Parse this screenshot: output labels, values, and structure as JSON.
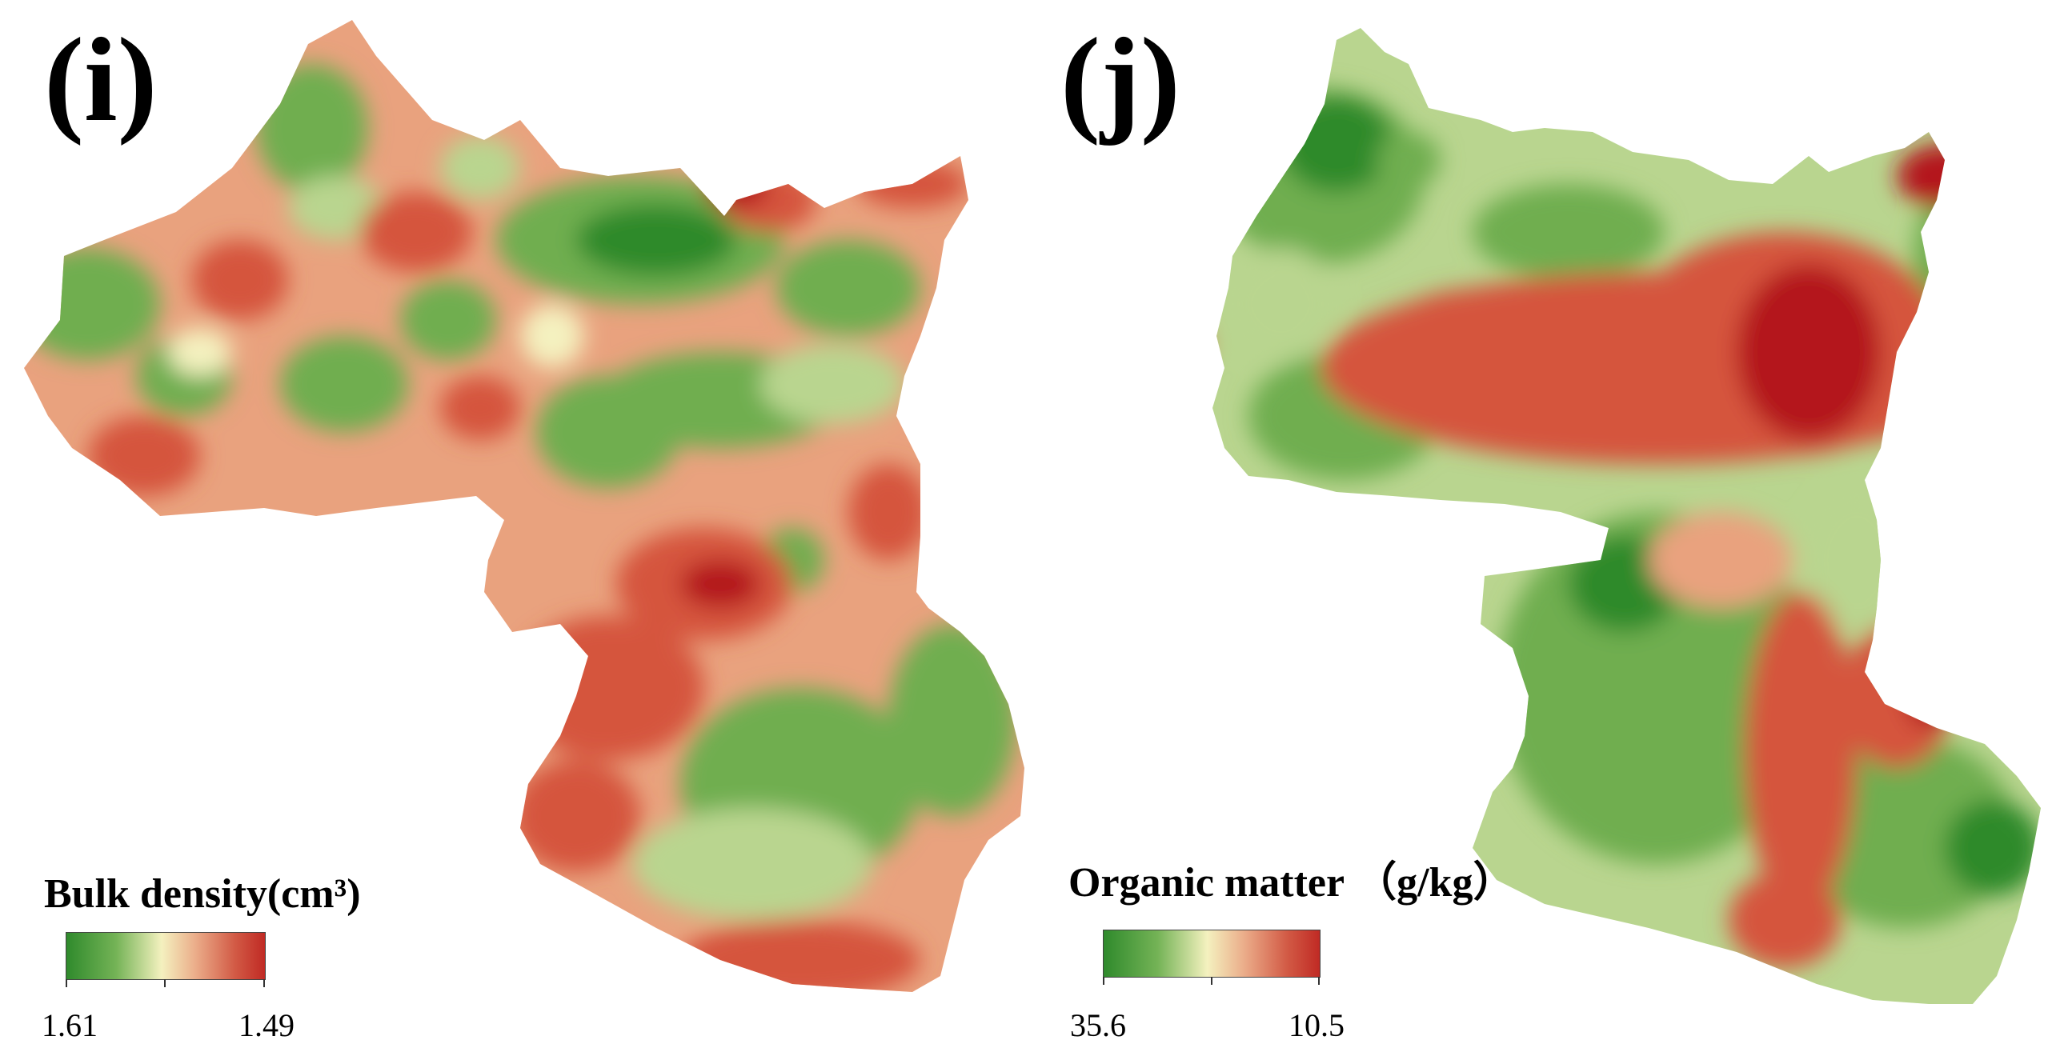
{
  "panels": [
    {
      "label": "(i)",
      "legend": {
        "title": "Bulk density(cm³)",
        "min_label": "1.61",
        "max_label": "1.49"
      }
    },
    {
      "label": "(j)",
      "legend": {
        "title": "Organic matter （g/kg）",
        "min_label": "35.6",
        "max_label": "10.5"
      }
    }
  ],
  "colors": {
    "dark_green": "#2f8a2c",
    "green": "#6fae4f",
    "light_green": "#b9d58f",
    "pale_yellow": "#f4f1bf",
    "salmon": "#e9a27e",
    "red": "#d5553d",
    "dark_red": "#b4181c"
  }
}
